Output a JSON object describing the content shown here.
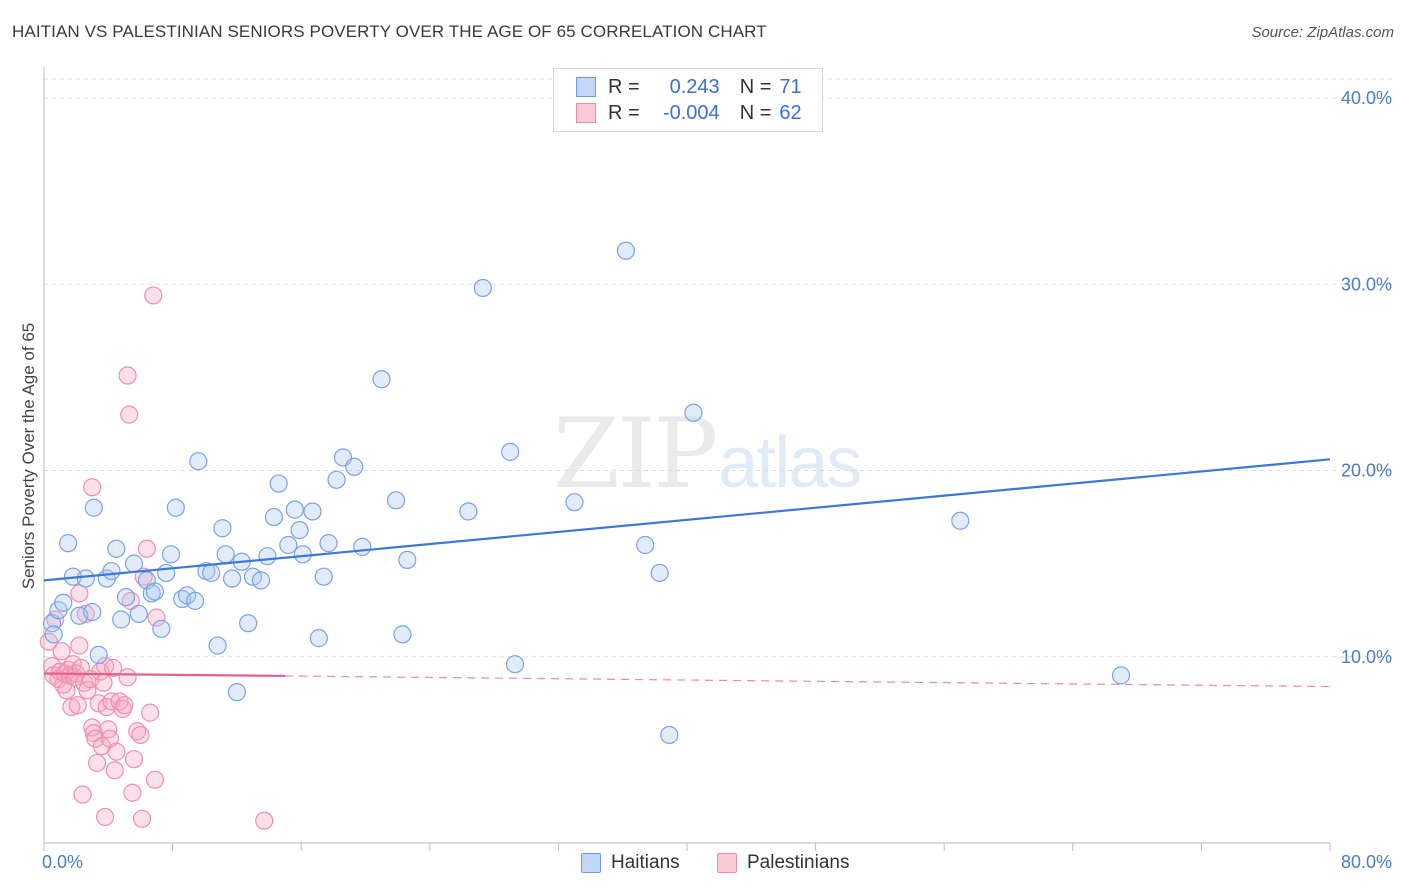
{
  "title": "HAITIAN VS PALESTINIAN SENIORS POVERTY OVER THE AGE OF 65 CORRELATION CHART",
  "source": "Source: ZipAtlas.com",
  "watermark": {
    "part1": "ZIP",
    "part2": "atlas"
  },
  "legend": {
    "rows": [
      {
        "r_label": "R =",
        "r_value": "0.243",
        "n_label": "N =",
        "n_value": "71",
        "color": "#6a9be6",
        "fill": "#c3d6f5"
      },
      {
        "r_label": "R =",
        "r_value": "-0.004",
        "n_label": "N =",
        "n_value": "62",
        "color": "#ef8aab",
        "fill": "#f9c9d8"
      }
    ]
  },
  "bottom_legend": {
    "series1": "Haitians",
    "series2": "Palestinians"
  },
  "colors": {
    "blue": "#3c78d8",
    "pink": "#e8608a",
    "grid": "#dcdcdc",
    "tick_text": "#4a7cc7"
  },
  "chart_data": {
    "type": "scatter",
    "title": "HAITIAN VS PALESTINIAN SENIORS POVERTY OVER THE AGE OF 65 CORRELATION CHART",
    "xlabel": "",
    "ylabel": "Seniors Poverty Over the Age of 65",
    "xlim": [
      0,
      80
    ],
    "ylim": [
      0,
      40
    ],
    "x_tick_labels": [
      "0.0%",
      "80.0%"
    ],
    "y_ticks": [
      10,
      20,
      30,
      40
    ],
    "y_tick_labels": [
      "10.0%",
      "20.0%",
      "30.0%",
      "40.0%"
    ],
    "grid": true,
    "legend_position": "top-center",
    "series": [
      {
        "name": "Haitians",
        "r": 0.243,
        "n": 71,
        "trend": {
          "x": [
            0,
            80
          ],
          "y": [
            14.1,
            20.6
          ],
          "style": "solid"
        },
        "points": [
          [
            0.5,
            11.8
          ],
          [
            0.6,
            11.2
          ],
          [
            0.9,
            12.5
          ],
          [
            1.2,
            12.9
          ],
          [
            1.5,
            16.1
          ],
          [
            1.8,
            14.3
          ],
          [
            2.2,
            12.2
          ],
          [
            2.6,
            14.2
          ],
          [
            3.0,
            12.4
          ],
          [
            3.1,
            18.0
          ],
          [
            3.4,
            10.1
          ],
          [
            3.9,
            14.2
          ],
          [
            4.2,
            14.6
          ],
          [
            4.5,
            15.8
          ],
          [
            4.8,
            12.0
          ],
          [
            5.1,
            13.2
          ],
          [
            5.6,
            15.0
          ],
          [
            5.9,
            12.3
          ],
          [
            6.4,
            14.1
          ],
          [
            6.7,
            13.4
          ],
          [
            6.9,
            13.5
          ],
          [
            7.3,
            11.5
          ],
          [
            7.6,
            14.5
          ],
          [
            7.9,
            15.5
          ],
          [
            8.2,
            18.0
          ],
          [
            8.6,
            13.1
          ],
          [
            8.9,
            13.3
          ],
          [
            9.4,
            13.0
          ],
          [
            9.6,
            20.5
          ],
          [
            10.1,
            14.6
          ],
          [
            10.4,
            14.5
          ],
          [
            10.8,
            10.6
          ],
          [
            11.1,
            16.9
          ],
          [
            11.3,
            15.5
          ],
          [
            11.7,
            14.2
          ],
          [
            12.0,
            8.1
          ],
          [
            12.3,
            15.1
          ],
          [
            12.7,
            11.8
          ],
          [
            13.0,
            14.3
          ],
          [
            13.5,
            14.1
          ],
          [
            13.9,
            15.4
          ],
          [
            14.3,
            17.5
          ],
          [
            14.6,
            19.3
          ],
          [
            15.2,
            16.0
          ],
          [
            15.6,
            17.9
          ],
          [
            15.9,
            16.8
          ],
          [
            16.1,
            15.5
          ],
          [
            16.7,
            17.8
          ],
          [
            17.1,
            11.0
          ],
          [
            17.4,
            14.3
          ],
          [
            17.7,
            16.1
          ],
          [
            18.2,
            19.5
          ],
          [
            18.6,
            20.7
          ],
          [
            19.3,
            20.2
          ],
          [
            19.8,
            15.9
          ],
          [
            21.0,
            24.9
          ],
          [
            21.9,
            18.4
          ],
          [
            22.3,
            11.2
          ],
          [
            22.6,
            15.2
          ],
          [
            26.4,
            17.8
          ],
          [
            27.3,
            29.8
          ],
          [
            29.0,
            21.0
          ],
          [
            29.3,
            9.6
          ],
          [
            33.0,
            18.3
          ],
          [
            36.2,
            31.8
          ],
          [
            37.4,
            16.0
          ],
          [
            38.3,
            14.5
          ],
          [
            38.9,
            5.8
          ],
          [
            40.4,
            23.1
          ],
          [
            57.0,
            17.3
          ],
          [
            67.0,
            9.0
          ]
        ]
      },
      {
        "name": "Palestinians",
        "r": -0.004,
        "n": 62,
        "trend": {
          "x": [
            0,
            80
          ],
          "y": [
            9.1,
            8.4
          ],
          "style": "solid-then-dashed",
          "solid_until_x": 15
        },
        "points": [
          [
            0.3,
            10.8
          ],
          [
            0.5,
            9.5
          ],
          [
            0.6,
            9.0
          ],
          [
            0.7,
            12.0
          ],
          [
            0.9,
            8.8
          ],
          [
            1.0,
            9.2
          ],
          [
            1.1,
            10.3
          ],
          [
            1.2,
            8.5
          ],
          [
            1.3,
            9.1
          ],
          [
            1.4,
            8.2
          ],
          [
            1.5,
            9.3
          ],
          [
            1.6,
            9.0
          ],
          [
            1.7,
            7.3
          ],
          [
            1.8,
            9.6
          ],
          [
            1.9,
            8.9
          ],
          [
            2.0,
            9.1
          ],
          [
            2.1,
            7.4
          ],
          [
            2.2,
            10.6
          ],
          [
            2.3,
            9.4
          ],
          [
            2.5,
            8.6
          ],
          [
            2.6,
            12.3
          ],
          [
            2.7,
            8.2
          ],
          [
            2.9,
            8.8
          ],
          [
            3.0,
            6.2
          ],
          [
            3.1,
            5.9
          ],
          [
            3.2,
            5.6
          ],
          [
            3.3,
            4.3
          ],
          [
            3.4,
            7.5
          ],
          [
            3.5,
            9.2
          ],
          [
            3.6,
            5.2
          ],
          [
            3.7,
            8.6
          ],
          [
            3.8,
            9.5
          ],
          [
            3.9,
            7.3
          ],
          [
            4.0,
            6.1
          ],
          [
            4.1,
            5.6
          ],
          [
            4.2,
            7.6
          ],
          [
            4.3,
            9.4
          ],
          [
            4.5,
            4.9
          ],
          [
            4.7,
            7.6
          ],
          [
            4.9,
            7.2
          ],
          [
            5.0,
            7.4
          ],
          [
            5.2,
            8.9
          ],
          [
            5.4,
            13.0
          ],
          [
            5.6,
            4.5
          ],
          [
            5.8,
            6.0
          ],
          [
            6.0,
            5.8
          ],
          [
            6.2,
            14.3
          ],
          [
            6.4,
            15.8
          ],
          [
            6.6,
            7.0
          ],
          [
            5.2,
            25.1
          ],
          [
            5.3,
            23.0
          ],
          [
            6.8,
            29.4
          ],
          [
            3.0,
            19.1
          ],
          [
            7.0,
            12.1
          ],
          [
            2.2,
            13.4
          ],
          [
            2.4,
            2.6
          ],
          [
            3.8,
            1.4
          ],
          [
            5.5,
            2.7
          ],
          [
            6.1,
            1.3
          ],
          [
            6.9,
            3.4
          ],
          [
            13.7,
            1.2
          ],
          [
            4.4,
            3.9
          ]
        ]
      }
    ]
  }
}
